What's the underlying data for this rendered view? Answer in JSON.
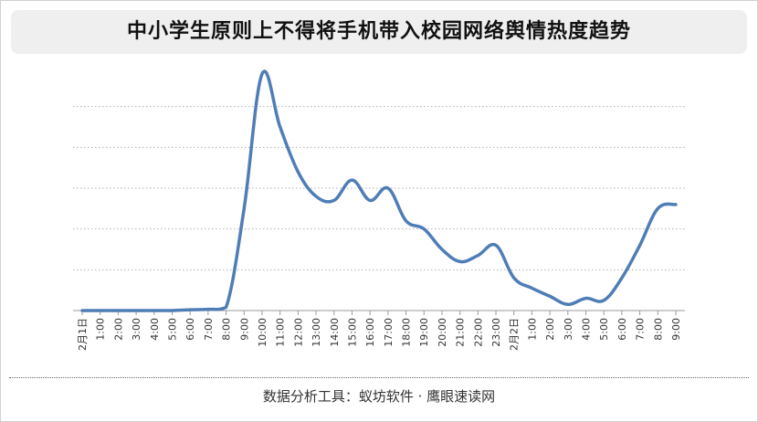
{
  "title": "中小学生原则上不得将手机带入校园网络舆情热度趋势",
  "footer": "数据分析工具：蚁坊软件 · 鹰眼速读网",
  "colors": {
    "line": "#4f7db6",
    "grid": "#b0b0b0",
    "axis": "#999999"
  },
  "chart_data": {
    "type": "line",
    "title": "中小学生原则上不得将手机带入校园网络舆情热度趋势",
    "xlabel": "",
    "ylabel": "",
    "grid": true,
    "categories": [
      "2月1日",
      "1:00",
      "2:00",
      "3:00",
      "4:00",
      "5:00",
      "6:00",
      "7:00",
      "8:00",
      "9:00",
      "10:00",
      "11:00",
      "12:00",
      "13:00",
      "14:00",
      "15:00",
      "16:00",
      "17:00",
      "18:00",
      "19:00",
      "20:00",
      "21:00",
      "22:00",
      "23:00",
      "2月2日",
      "1:00",
      "2:00",
      "3:00",
      "4:00",
      "5:00",
      "6:00",
      "7:00",
      "8:00",
      "9:00"
    ],
    "series": [
      {
        "values": [
          0,
          0,
          0,
          0,
          0,
          0,
          0.2,
          0.3,
          0.8,
          25,
          58,
          45,
          34,
          28,
          27,
          32,
          27,
          30,
          22,
          20,
          15,
          12,
          13.5,
          16,
          8,
          5.5,
          3.5,
          1.5,
          3,
          2.5,
          8,
          16,
          25,
          26
        ]
      }
    ],
    "ylim": [
      0,
      60
    ]
  }
}
